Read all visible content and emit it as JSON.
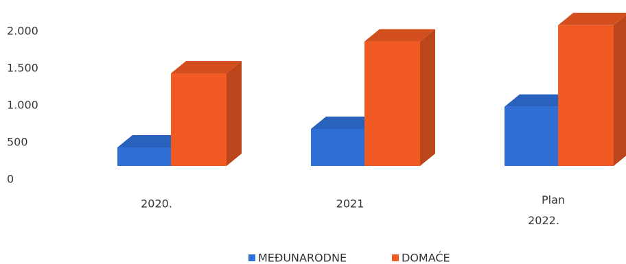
{
  "chart_data": {
    "type": "bar3d",
    "categories": [
      "2020.",
      "2021",
      "Plan 2022."
    ],
    "series": [
      {
        "name": "MEĐUNARODNE",
        "color": "#2f6fd6",
        "values": [
          250,
          500,
          800
        ]
      },
      {
        "name": "DOMAĆE",
        "color": "#f15a22",
        "values": [
          1250,
          1680,
          1900
        ]
      }
    ],
    "ylim": [
      0,
      2000
    ],
    "yticks": [
      0,
      500,
      {
        "value": 1000,
        "label": "1.000"
      },
      {
        "value": 1500,
        "label": "1.500"
      },
      {
        "value": 2000,
        "label": "2.000"
      }
    ],
    "legend": "bottom"
  }
}
